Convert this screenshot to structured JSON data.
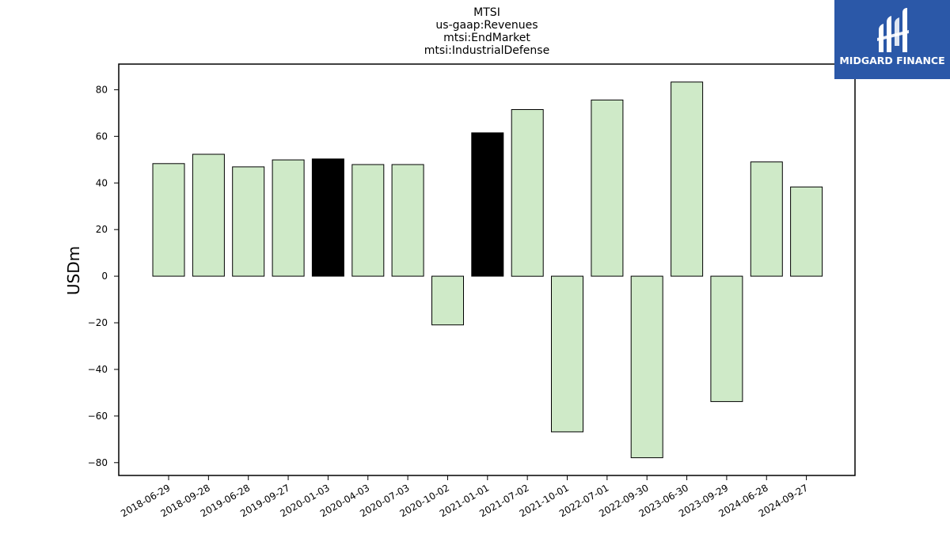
{
  "logo": {
    "text": "MIDGARD FINANCE"
  },
  "colors": {
    "normal_bar": "#cfeac8",
    "highlight_bar": "#000000",
    "logo_bg": "#2b58a8"
  },
  "chart_data": {
    "type": "bar",
    "title_lines": [
      "MTSI",
      "us-gaap:Revenues",
      "mtsi:EndMarket",
      "mtsi:IndustrialDefense"
    ],
    "xlabel": "",
    "ylabel": "USDm",
    "ylim": [
      -85.5,
      91
    ],
    "yticks": [
      80,
      60,
      40,
      20,
      0,
      -20,
      -40,
      -60,
      -80
    ],
    "ytick_labels": [
      "80",
      "60",
      "40",
      "20",
      "0",
      "−20",
      "−40",
      "−60",
      "−80"
    ],
    "grid": false,
    "categories": [
      "2018-06-29",
      "2018-09-28",
      "2019-06-28",
      "2019-09-27",
      "2020-01-03",
      "2020-04-03",
      "2020-07-03",
      "2020-10-02",
      "2021-01-01",
      "2021-07-02",
      "2021-10-01",
      "2022-07-01",
      "2022-09-30",
      "2023-06-30",
      "2023-09-29",
      "2024-06-28",
      "2024-09-27"
    ],
    "values": [
      48.3,
      52.3,
      46.9,
      49.9,
      50.3,
      47.9,
      47.9,
      -20.9,
      61.5,
      71.5,
      -66.8,
      75.6,
      -77.9,
      83.3,
      -53.8,
      49.0,
      38.3
    ],
    "highlighted": [
      false,
      false,
      false,
      false,
      true,
      false,
      false,
      false,
      true,
      false,
      false,
      false,
      false,
      false,
      false,
      false,
      false
    ]
  }
}
